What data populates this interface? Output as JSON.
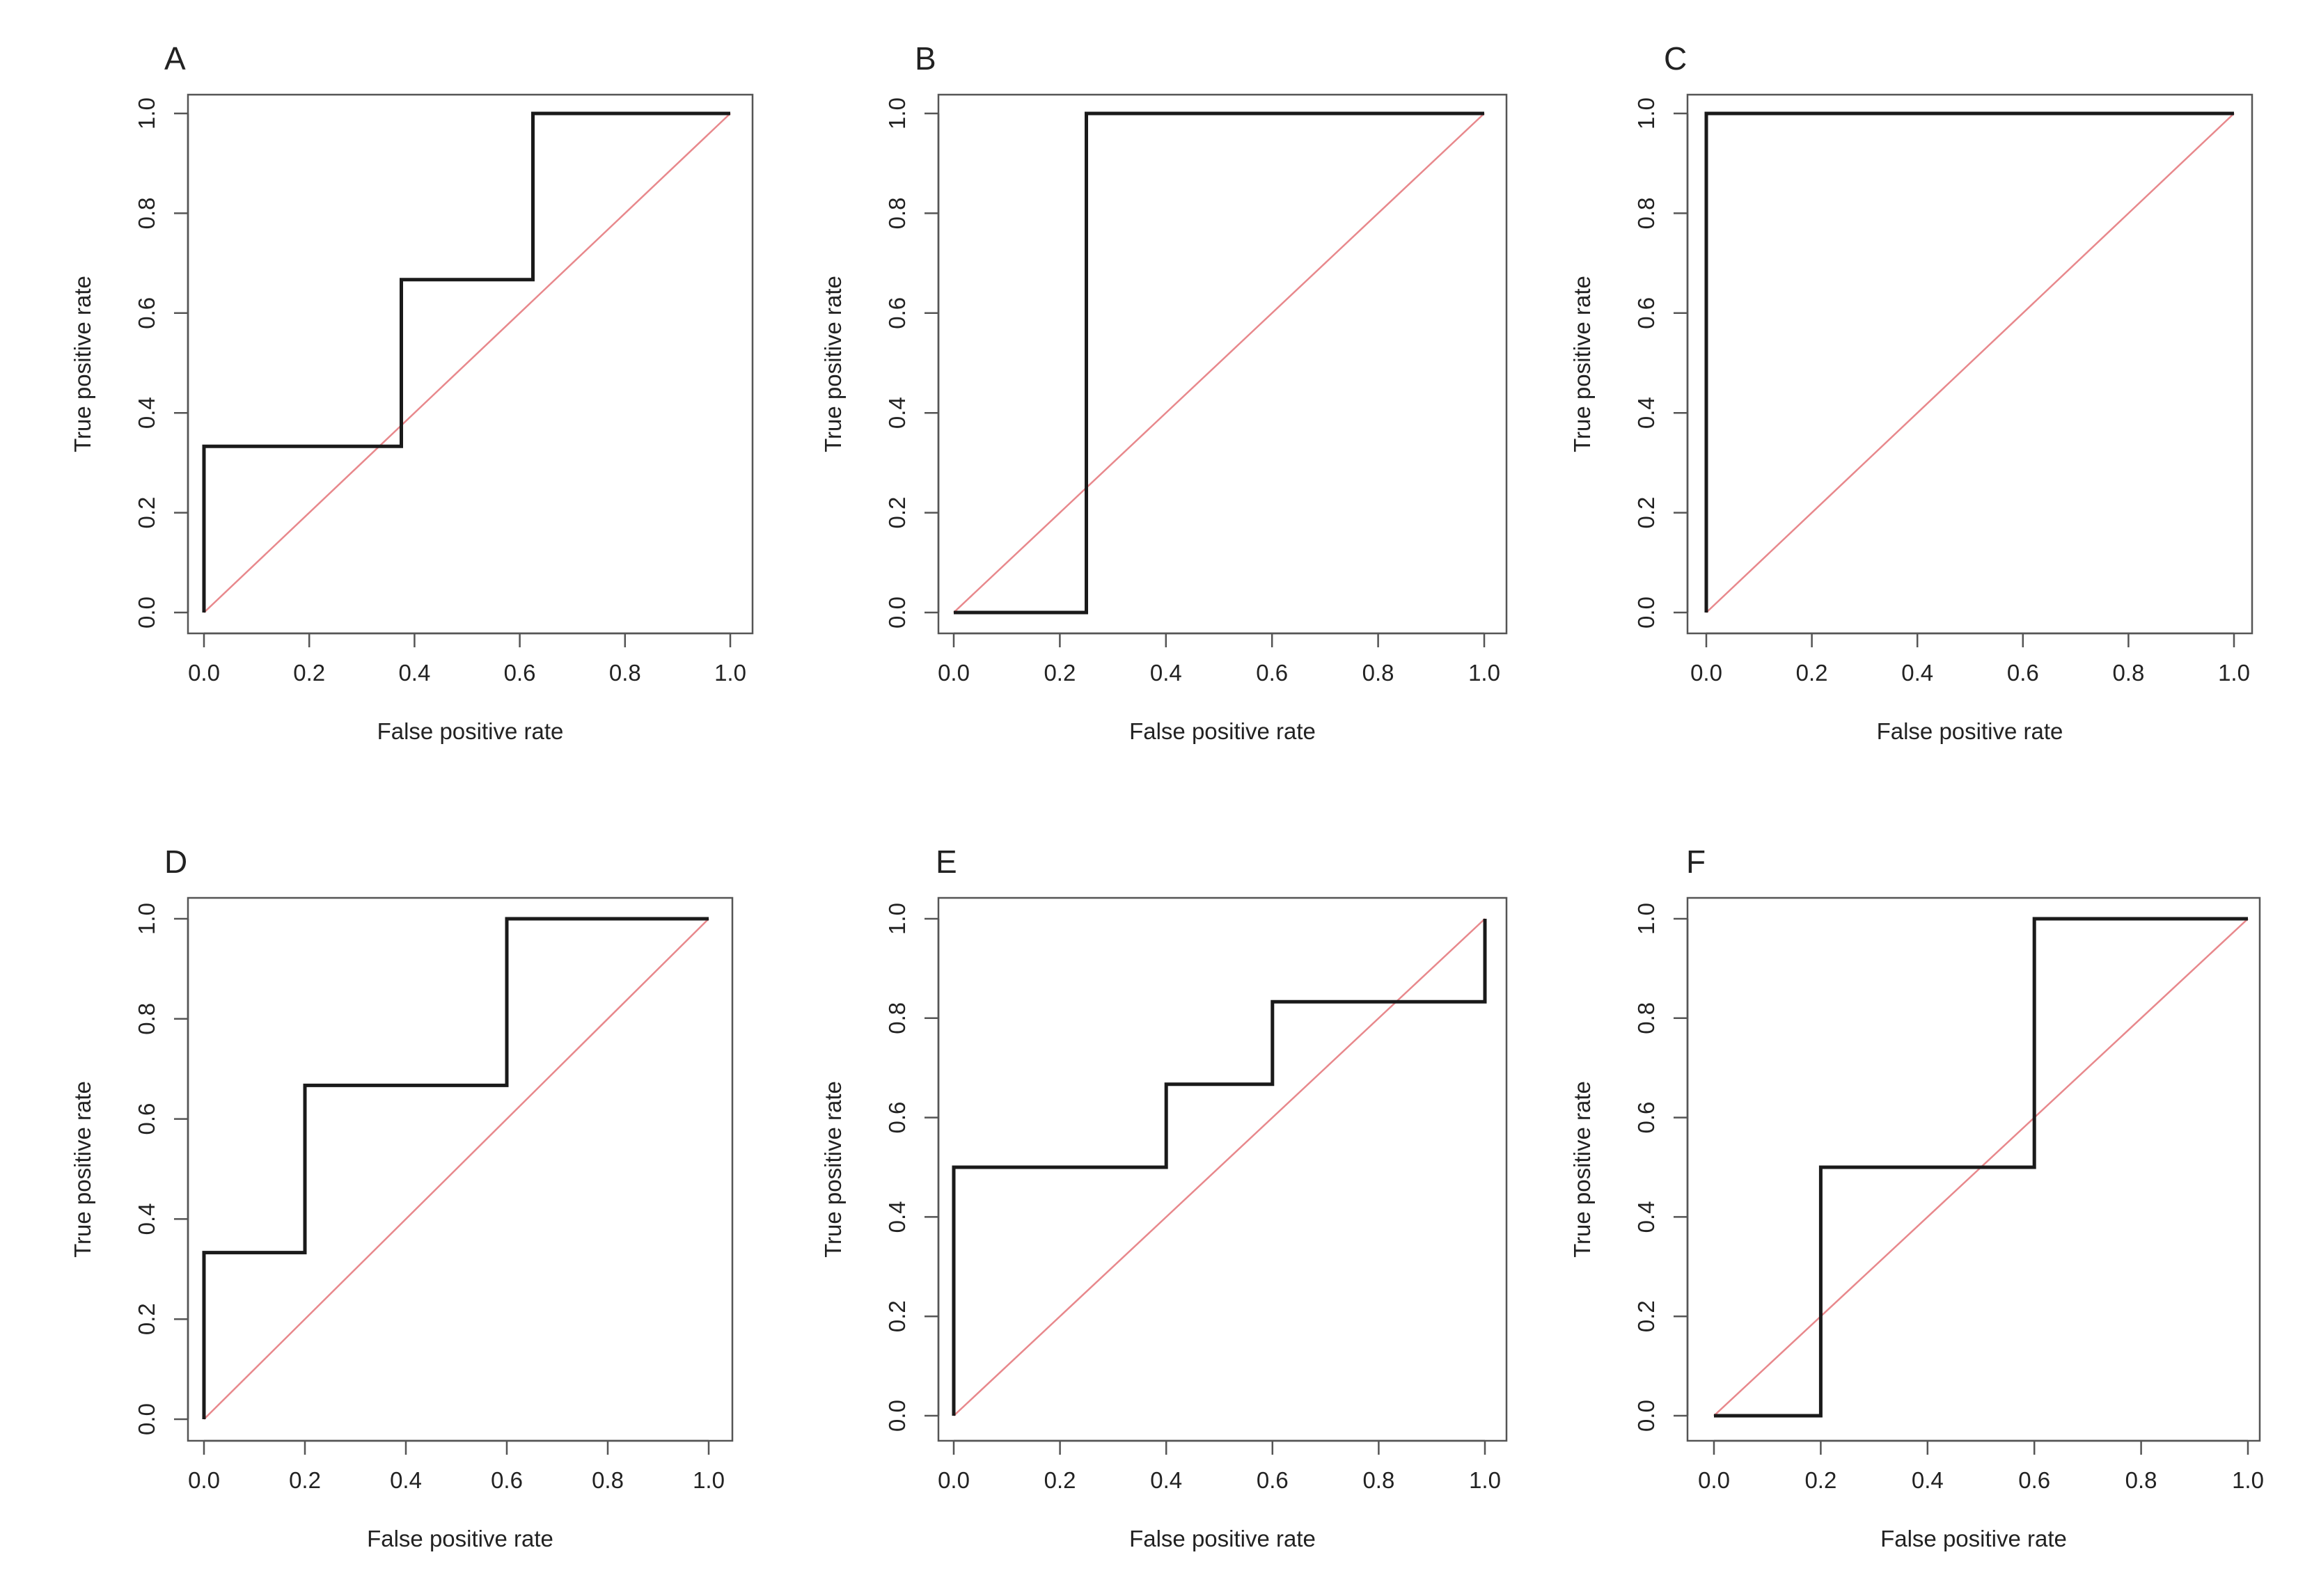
{
  "colors": {
    "roc_line": "#1a1a1a",
    "diagonal": "#e8888c",
    "axes": "#555555",
    "text": "#222222"
  },
  "chart_data": [
    {
      "type": "line",
      "panel_label": "A",
      "xlabel": "False positive rate",
      "ylabel": "True positive rate",
      "xlim": [
        0,
        1
      ],
      "ylim": [
        0,
        1
      ],
      "x_ticks": [
        "0.0",
        "0.2",
        "0.4",
        "0.6",
        "0.8",
        "1.0"
      ],
      "y_ticks": [
        "0.0",
        "0.2",
        "0.4",
        "0.6",
        "0.8",
        "1.0"
      ],
      "grid": false,
      "series": [
        {
          "style": "step",
          "x": [
            0,
            0,
            0.375,
            0.375,
            0.625,
            0.625,
            1
          ],
          "y": [
            0,
            0.333,
            0.333,
            0.667,
            0.667,
            1,
            1
          ]
        },
        {
          "style": "reference",
          "x": [
            0,
            1
          ],
          "y": [
            0,
            1
          ]
        }
      ]
    },
    {
      "type": "line",
      "panel_label": "B",
      "xlabel": "False positive rate",
      "ylabel": "True positive rate",
      "xlim": [
        0,
        1
      ],
      "ylim": [
        0,
        1
      ],
      "x_ticks": [
        "0.0",
        "0.2",
        "0.4",
        "0.6",
        "0.8",
        "1.0"
      ],
      "y_ticks": [
        "0.0",
        "0.2",
        "0.4",
        "0.6",
        "0.8",
        "1.0"
      ],
      "grid": false,
      "series": [
        {
          "style": "step",
          "x": [
            0,
            0.25,
            0.25,
            1
          ],
          "y": [
            0,
            0,
            1,
            1
          ]
        },
        {
          "style": "reference",
          "x": [
            0,
            1
          ],
          "y": [
            0,
            1
          ]
        }
      ]
    },
    {
      "type": "line",
      "panel_label": "C",
      "xlabel": "False positive rate",
      "ylabel": "True positive rate",
      "xlim": [
        0,
        1
      ],
      "ylim": [
        0,
        1
      ],
      "x_ticks": [
        "0.0",
        "0.2",
        "0.4",
        "0.6",
        "0.8",
        "1.0"
      ],
      "y_ticks": [
        "0.0",
        "0.2",
        "0.4",
        "0.6",
        "0.8",
        "1.0"
      ],
      "grid": false,
      "series": [
        {
          "style": "step",
          "x": [
            0,
            0,
            1
          ],
          "y": [
            0,
            1,
            1
          ]
        },
        {
          "style": "reference",
          "x": [
            0,
            1
          ],
          "y": [
            0,
            1
          ]
        }
      ]
    },
    {
      "type": "line",
      "panel_label": "D",
      "xlabel": "False positive rate",
      "ylabel": "True positive rate",
      "xlim": [
        0,
        1
      ],
      "ylim": [
        0,
        1
      ],
      "x_ticks": [
        "0.0",
        "0.2",
        "0.4",
        "0.6",
        "0.8",
        "1.0"
      ],
      "y_ticks": [
        "0.0",
        "0.2",
        "0.4",
        "0.6",
        "0.8",
        "1.0"
      ],
      "grid": false,
      "series": [
        {
          "style": "step",
          "x": [
            0,
            0,
            0.2,
            0.2,
            0.6,
            0.6,
            1
          ],
          "y": [
            0,
            0.333,
            0.333,
            0.667,
            0.667,
            1,
            1
          ]
        },
        {
          "style": "reference",
          "x": [
            0,
            1
          ],
          "y": [
            0,
            1
          ]
        }
      ]
    },
    {
      "type": "line",
      "panel_label": "E",
      "xlabel": "False positive rate",
      "ylabel": "True positive rate",
      "xlim": [
        0,
        1
      ],
      "ylim": [
        0,
        1
      ],
      "x_ticks": [
        "0.0",
        "0.2",
        "0.4",
        "0.6",
        "0.8",
        "1.0"
      ],
      "y_ticks": [
        "0.0",
        "0.2",
        "0.4",
        "0.6",
        "0.8",
        "1.0"
      ],
      "grid": false,
      "series": [
        {
          "style": "step",
          "x": [
            0,
            0,
            0.4,
            0.4,
            0.6,
            0.6,
            1,
            1
          ],
          "y": [
            0,
            0.5,
            0.5,
            0.667,
            0.667,
            0.833,
            0.833,
            1
          ]
        },
        {
          "style": "reference",
          "x": [
            0,
            1
          ],
          "y": [
            0,
            1
          ]
        }
      ]
    },
    {
      "type": "line",
      "panel_label": "F",
      "xlabel": "False positive rate",
      "ylabel": "True positive rate",
      "xlim": [
        0,
        1
      ],
      "ylim": [
        0,
        1
      ],
      "x_ticks": [
        "0.0",
        "0.2",
        "0.4",
        "0.6",
        "0.8",
        "1.0"
      ],
      "y_ticks": [
        "0.0",
        "0.2",
        "0.4",
        "0.6",
        "0.8",
        "1.0"
      ],
      "grid": false,
      "series": [
        {
          "style": "step",
          "x": [
            0,
            0.2,
            0.2,
            0.6,
            0.6,
            1
          ],
          "y": [
            0,
            0,
            0.5,
            0.5,
            1,
            1
          ]
        },
        {
          "style": "reference",
          "x": [
            0,
            1
          ],
          "y": [
            0,
            1
          ]
        }
      ]
    }
  ]
}
